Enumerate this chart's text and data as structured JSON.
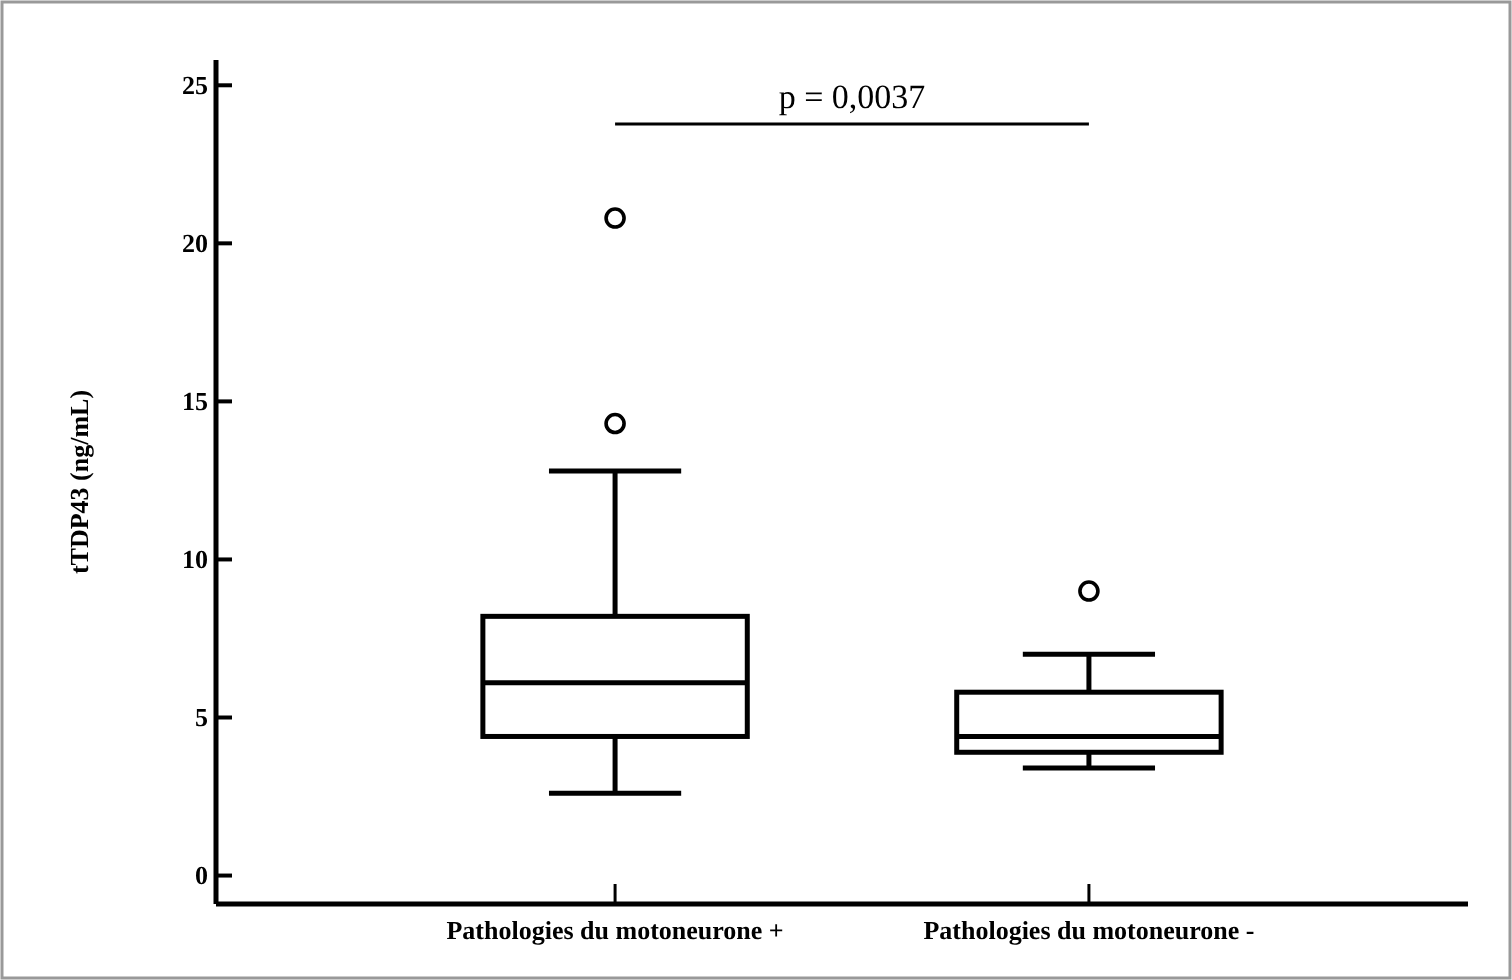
{
  "chart_data": {
    "type": "box",
    "ylabel": "tTDP43 (ng/mL)",
    "categories": [
      "Pathologies du motoneurone +",
      "Pathologies du motoneurone -"
    ],
    "boxes": [
      {
        "low": 2.6,
        "q1": 4.4,
        "median": 6.1,
        "q3": 8.2,
        "high": 12.8,
        "outliers": [
          14.3,
          20.8
        ]
      },
      {
        "low": 3.4,
        "q1": 3.9,
        "median": 4.4,
        "q3": 5.8,
        "high": 7.0,
        "outliers": [
          9.0
        ]
      }
    ],
    "color": "#000000",
    "ylim": [
      -0.9,
      25.8
    ],
    "yticks": [
      0,
      5,
      10,
      15,
      20,
      25
    ],
    "annotations": [
      "p = 0,0037"
    ],
    "grid": false
  }
}
